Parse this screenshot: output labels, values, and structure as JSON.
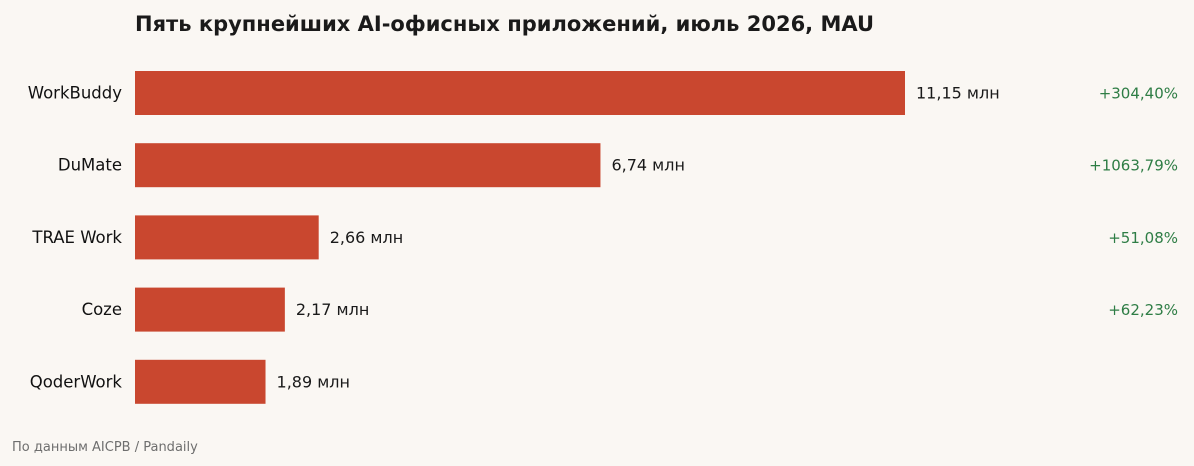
{
  "chart_data": {
    "type": "bar",
    "orientation": "horizontal",
    "title": "Пять крупнейших AI-офисных приложений, июль 2026, MAU",
    "categories": [
      "WorkBuddy",
      "DuMate",
      "TRAE Work",
      "Coze",
      "QoderWork"
    ],
    "values": [
      11.15,
      6.74,
      2.66,
      2.17,
      1.89
    ],
    "value_labels": [
      "11,15 млн",
      "6,74 млн",
      "2,66 млн",
      "2,17 млн",
      "1,89 млн"
    ],
    "change_labels": [
      "+304,40%",
      "+1063,79%",
      "+51,08%",
      "+62,23%",
      ""
    ],
    "xlim": [
      0,
      11.15
    ],
    "grid": false,
    "legend": "none",
    "source": "По данным AICPB / Pandaily",
    "colors": {
      "bar": "#c9472f",
      "change": "#2e7d45",
      "background": "#faf7f3"
    }
  }
}
